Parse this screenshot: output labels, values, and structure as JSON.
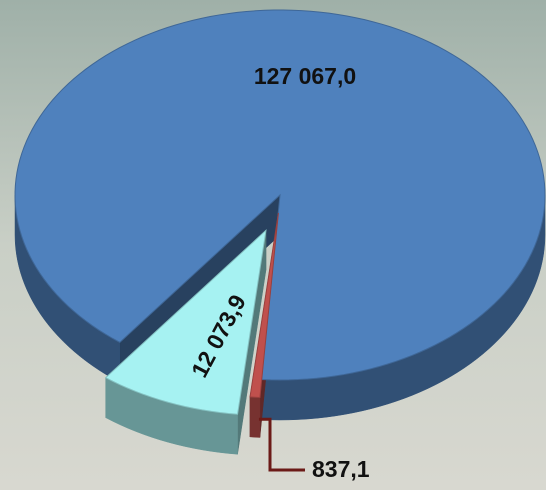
{
  "chart_data": {
    "type": "pie",
    "values": [
      127067.0,
      12073.9,
      837.1
    ],
    "value_labels": [
      "127 067,0",
      "12 073,9",
      "837,1"
    ],
    "colors": [
      "#4f81bd",
      "#a6f2f2",
      "#c0504d"
    ]
  }
}
